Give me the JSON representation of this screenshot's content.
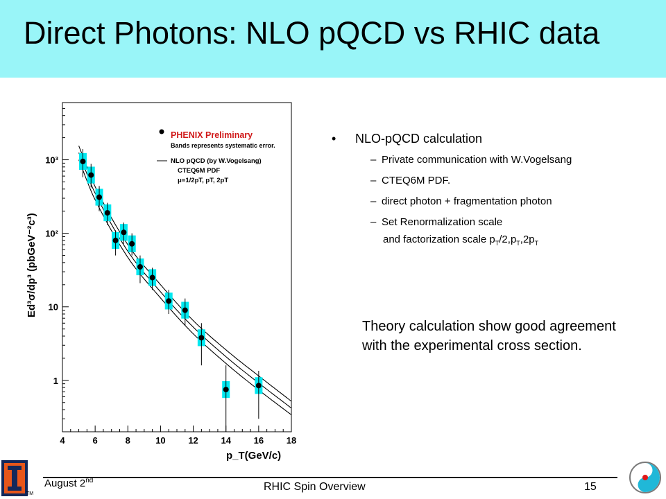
{
  "slide": {
    "title": "Direct Photons: NLO pQCD vs RHIC data",
    "footer": {
      "date_main": "August 2",
      "date_sup": "nd",
      "center": "RHIC Spin Overview",
      "page": "15"
    }
  },
  "bullets": {
    "main": "NLO-pQCD calculation",
    "sub": [
      "Private communication with W.Vogelsang",
      "CTEQ6M PDF.",
      "direct photon + fragmentation photon",
      "Set Renormalization scale"
    ],
    "cont_prefix": "and factorization scale p",
    "cont_mid1": "/2,p",
    "cont_mid2": ",2p",
    "cont_sub": "T"
  },
  "conclusion": "Theory calculation show good agreement with the experimental cross section.",
  "chart_data": {
    "type": "scatter",
    "xlabel": "p_T(GeV/c)",
    "ylabel": "Ed³σ/dp³ (pbGeV⁻²c³)",
    "xlim": [
      4,
      18
    ],
    "ylim": [
      0.2,
      6000
    ],
    "yscale": "log",
    "x_ticks": [
      4,
      6,
      8,
      10,
      12,
      14,
      16,
      18
    ],
    "y_ticks": [
      {
        "v": 1,
        "label": "1"
      },
      {
        "v": 10,
        "label": "10"
      },
      {
        "v": 100,
        "label": "10²"
      },
      {
        "v": 1000,
        "label": "10³"
      }
    ],
    "legend": {
      "data_label": "PHENIX Preliminary",
      "band_note": "Bands represents systematic error.",
      "theory_label": "NLO pQCD (by W.Vogelsang)",
      "pdf_label": "CTEQ6M PDF",
      "scale_label": "μ=1/2pT, pT, 2pT"
    },
    "series": [
      {
        "name": "PHENIX Preliminary",
        "points": [
          {
            "x": 5.25,
            "y": 950,
            "ylo": 580,
            "yhi": 1400
          },
          {
            "x": 5.75,
            "y": 620,
            "ylo": 420,
            "yhi": 880
          },
          {
            "x": 6.25,
            "y": 310,
            "ylo": 200,
            "yhi": 440
          },
          {
            "x": 6.75,
            "y": 190,
            "ylo": 130,
            "yhi": 260
          },
          {
            "x": 7.25,
            "y": 80,
            "ylo": 50,
            "yhi": 110
          },
          {
            "x": 7.75,
            "y": 103,
            "ylo": 72,
            "yhi": 140
          },
          {
            "x": 8.25,
            "y": 72,
            "ylo": 50,
            "yhi": 100
          },
          {
            "x": 8.75,
            "y": 35,
            "ylo": 21,
            "yhi": 50
          },
          {
            "x": 9.5,
            "y": 25,
            "ylo": 17,
            "yhi": 34
          },
          {
            "x": 10.5,
            "y": 12,
            "ylo": 8,
            "yhi": 17
          },
          {
            "x": 11.5,
            "y": 9,
            "ylo": 5.5,
            "yhi": 13
          },
          {
            "x": 12.5,
            "y": 3.8,
            "ylo": 1.6,
            "yhi": 6
          },
          {
            "x": 14,
            "y": 0.75,
            "ylo": 0.2,
            "yhi": 1.6
          },
          {
            "x": 16,
            "y": 0.85,
            "ylo": 0.3,
            "yhi": 1.35
          }
        ]
      }
    ],
    "curves": [
      {
        "name": "μ=1/2pT",
        "x": [
          5,
          6,
          8,
          10,
          12,
          14,
          16,
          18
        ],
        "y": [
          1550,
          430,
          70,
          20,
          6.5,
          2.6,
          1.15,
          0.52
        ]
      },
      {
        "name": "μ=pT",
        "x": [
          5,
          6,
          8,
          10,
          12,
          14,
          16,
          18
        ],
        "y": [
          1250,
          350,
          57,
          16,
          5.3,
          2.1,
          0.92,
          0.42
        ]
      },
      {
        "name": "μ=2pT",
        "x": [
          5,
          6,
          8,
          10,
          12,
          14,
          16,
          18
        ],
        "y": [
          1000,
          285,
          47,
          13.2,
          4.3,
          1.7,
          0.74,
          0.34
        ]
      }
    ],
    "colors": {
      "band": "#00e8f0",
      "point": "#000000",
      "legend_red": "#d01818"
    }
  }
}
